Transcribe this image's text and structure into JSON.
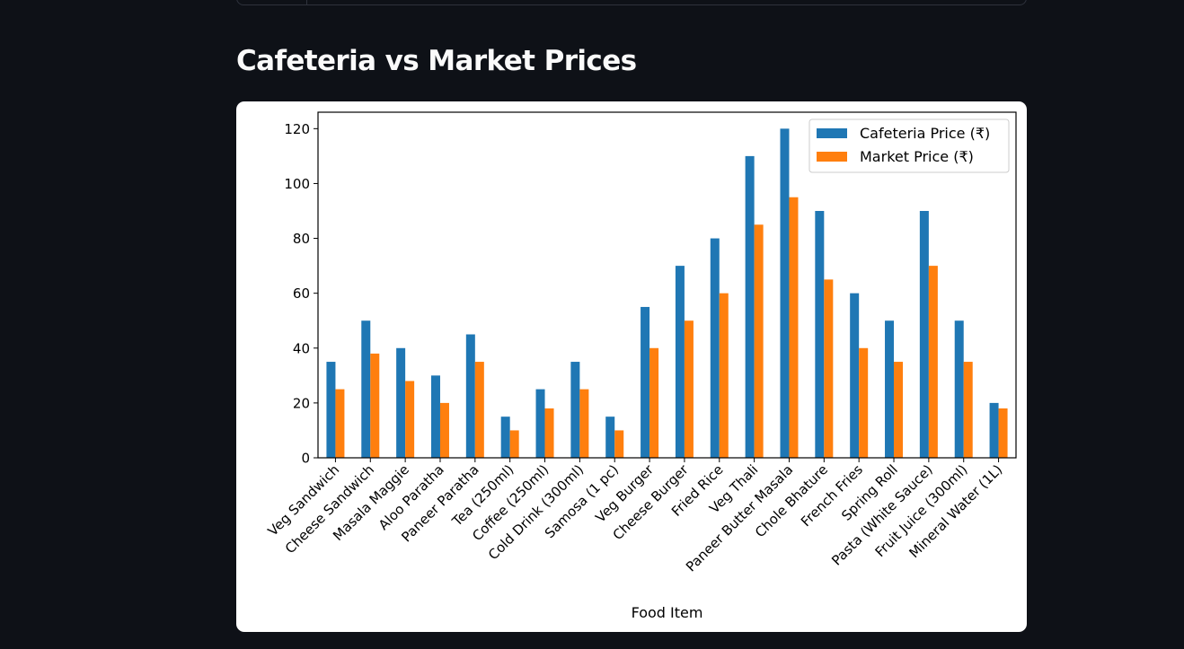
{
  "page": {
    "title": "Cafeteria vs Market Prices"
  },
  "colors": {
    "background": "#0e1117",
    "title": "#fafafa",
    "card": "#ffffff",
    "cafeteria": "#1f77b4",
    "market": "#ff7f0e"
  },
  "chart_data": {
    "type": "bar",
    "title": "",
    "xlabel": "Food Item",
    "ylabel": "",
    "ylim": [
      0,
      126
    ],
    "yticks": [
      0,
      20,
      40,
      60,
      80,
      100,
      120
    ],
    "grid": false,
    "legend_position": "top-right",
    "categories": [
      "Veg Sandwich",
      "Cheese Sandwich",
      "Masala Maggie",
      "Aloo Paratha",
      "Paneer Paratha",
      "Tea (250ml)",
      "Coffee (250ml)",
      "Cold Drink (300ml)",
      "Samosa (1 pc)",
      "Veg Burger",
      "Cheese Burger",
      "Fried Rice",
      "Veg Thali",
      "Paneer Butter Masala",
      "Chole Bhature",
      "French Fries",
      "Spring Roll",
      "Pasta (White Sauce)",
      "Fruit Juice (300ml)",
      "Mineral Water (1L)"
    ],
    "series": [
      {
        "name": "Cafeteria Price (₹)",
        "color": "#1f77b4",
        "values": [
          35,
          50,
          40,
          30,
          45,
          15,
          25,
          35,
          15,
          55,
          70,
          80,
          110,
          120,
          90,
          60,
          50,
          90,
          50,
          20
        ]
      },
      {
        "name": "Market Price (₹)",
        "color": "#ff7f0e",
        "values": [
          25,
          38,
          28,
          20,
          35,
          10,
          18,
          25,
          10,
          40,
          50,
          60,
          85,
          95,
          65,
          40,
          35,
          70,
          35,
          18
        ]
      }
    ]
  }
}
